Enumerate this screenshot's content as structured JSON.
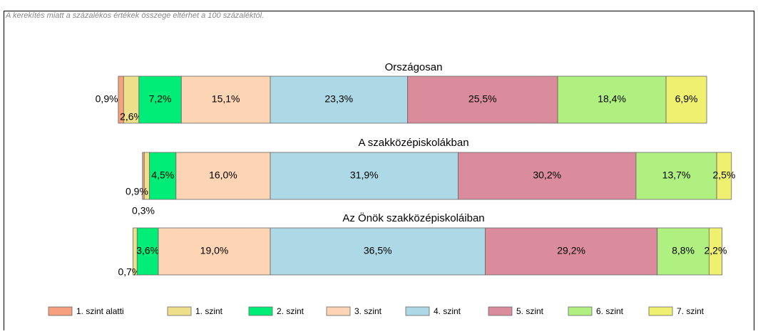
{
  "chart_data": {
    "type": "bar",
    "orientation": "horizontal",
    "stacked": true,
    "note": "A kerekítés miatt a százalékos értékek összege eltérhet a 100 százaléktól.",
    "categories": [
      "Országosan",
      "A szakközépiskolákban",
      "Az Önök szakközépiskoláiban"
    ],
    "series": [
      {
        "name": "1. szint alatti",
        "color": "#f6a07e",
        "values": [
          0.9,
          0.3,
          null
        ],
        "value_labels": [
          "0,9%",
          "0,3%",
          null
        ]
      },
      {
        "name": "1. szint",
        "color": "#eee08a",
        "values": [
          2.6,
          0.9,
          0.7
        ],
        "value_labels": [
          "2,6%",
          "0,9%",
          "0,7%"
        ]
      },
      {
        "name": "2. szint",
        "color": "#00ee77",
        "values": [
          7.2,
          4.5,
          3.6
        ],
        "value_labels": [
          "7,2%",
          "4,5%",
          "3,6%"
        ]
      },
      {
        "name": "3. szint",
        "color": "#fdd5b4",
        "values": [
          15.1,
          16.0,
          19.0
        ],
        "value_labels": [
          "15,1%",
          "16,0%",
          "19,0%"
        ]
      },
      {
        "name": "4. szint",
        "color": "#add8e6",
        "values": [
          23.3,
          31.9,
          36.5
        ],
        "value_labels": [
          "23,3%",
          "31,9%",
          "36,5%"
        ]
      },
      {
        "name": "5. szint",
        "color": "#db8c9c",
        "values": [
          25.5,
          30.2,
          29.2
        ],
        "value_labels": [
          "25,5%",
          "30,2%",
          "29,2%"
        ]
      },
      {
        "name": "6. szint",
        "color": "#b0f080",
        "values": [
          18.4,
          13.7,
          8.8
        ],
        "value_labels": [
          "18,4%",
          "13,7%",
          "8,8%"
        ]
      },
      {
        "name": "7. szint",
        "color": "#f0f070",
        "values": [
          6.9,
          2.5,
          2.2
        ],
        "value_labels": [
          "6,9%",
          "2,5%",
          "2,2%"
        ]
      }
    ],
    "legend": "bottom"
  }
}
